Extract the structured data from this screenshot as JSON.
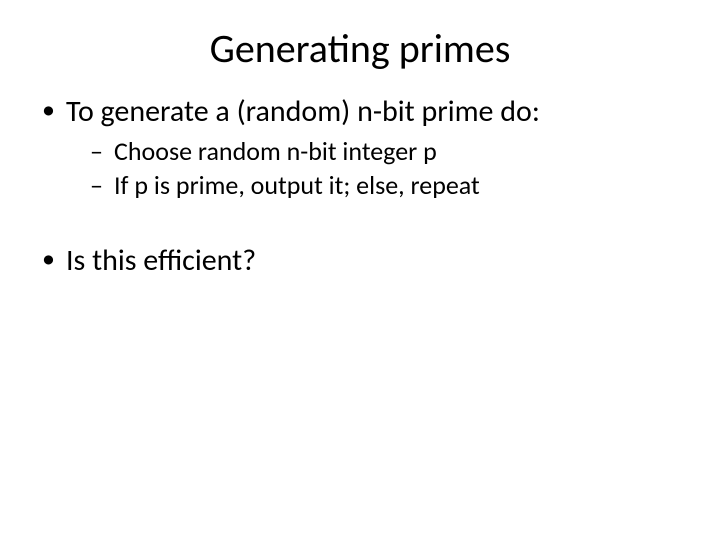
{
  "slide": {
    "title": "Generating primes",
    "bullets": [
      {
        "text": "To generate a (random) n-bit prime do:",
        "sub": [
          "Choose random n-bit integer p",
          "If p is prime, output it; else, repeat"
        ]
      },
      {
        "text": "Is this efficient?",
        "sub": []
      }
    ],
    "colors": {
      "background": "#ffffff",
      "text": "#000000"
    },
    "typography": {
      "title_fontsize": 40,
      "lvl1_fontsize": 30,
      "lvl2_fontsize": 26,
      "font_family": "Calibri"
    }
  }
}
